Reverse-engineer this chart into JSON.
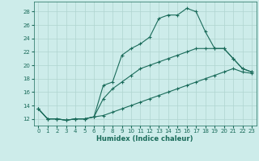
{
  "xlabel": "Humidex (Indice chaleur)",
  "bg_color": "#cdecea",
  "grid_color": "#b0d4d0",
  "line_color": "#1a6b5a",
  "xlim": [
    -0.5,
    23.5
  ],
  "ylim": [
    11.0,
    29.5
  ],
  "xticks": [
    0,
    1,
    2,
    3,
    4,
    5,
    6,
    7,
    8,
    9,
    10,
    11,
    12,
    13,
    14,
    15,
    16,
    17,
    18,
    19,
    20,
    21,
    22,
    23
  ],
  "yticks": [
    12,
    14,
    16,
    18,
    20,
    22,
    24,
    26,
    28
  ],
  "line1_x": [
    0,
    1,
    2,
    3,
    4,
    5,
    6,
    7,
    8,
    9,
    10,
    11,
    12,
    13,
    14,
    15,
    16,
    17,
    18,
    19,
    20,
    21,
    22,
    23
  ],
  "line1_y": [
    13.5,
    12.0,
    12.0,
    11.8,
    12.0,
    12.0,
    12.3,
    17.0,
    17.5,
    21.5,
    22.5,
    23.2,
    24.2,
    27.0,
    27.5,
    27.5,
    28.5,
    28.0,
    25.0,
    22.5,
    22.5,
    21.0,
    19.5,
    19.0
  ],
  "line2_x": [
    0,
    1,
    2,
    3,
    4,
    5,
    6,
    7,
    8,
    9,
    10,
    11,
    12,
    13,
    14,
    15,
    16,
    17,
    18,
    19,
    20,
    21,
    22,
    23
  ],
  "line2_y": [
    13.5,
    12.0,
    12.0,
    11.8,
    12.0,
    12.0,
    12.3,
    15.0,
    16.5,
    17.5,
    18.5,
    19.5,
    20.0,
    20.5,
    21.0,
    21.5,
    22.0,
    22.5,
    22.5,
    22.5,
    22.5,
    21.0,
    19.5,
    19.0
  ],
  "line3_x": [
    0,
    1,
    2,
    3,
    4,
    5,
    6,
    7,
    8,
    9,
    10,
    11,
    12,
    13,
    14,
    15,
    16,
    17,
    18,
    19,
    20,
    21,
    22,
    23
  ],
  "line3_y": [
    13.5,
    12.0,
    12.0,
    11.8,
    12.0,
    12.0,
    12.3,
    12.5,
    13.0,
    13.5,
    14.0,
    14.5,
    15.0,
    15.5,
    16.0,
    16.5,
    17.0,
    17.5,
    18.0,
    18.5,
    19.0,
    19.5,
    19.0,
    18.8
  ],
  "marker": "+",
  "markersize": 3,
  "linewidth": 0.8,
  "axis_fontsize": 6,
  "tick_fontsize": 5
}
